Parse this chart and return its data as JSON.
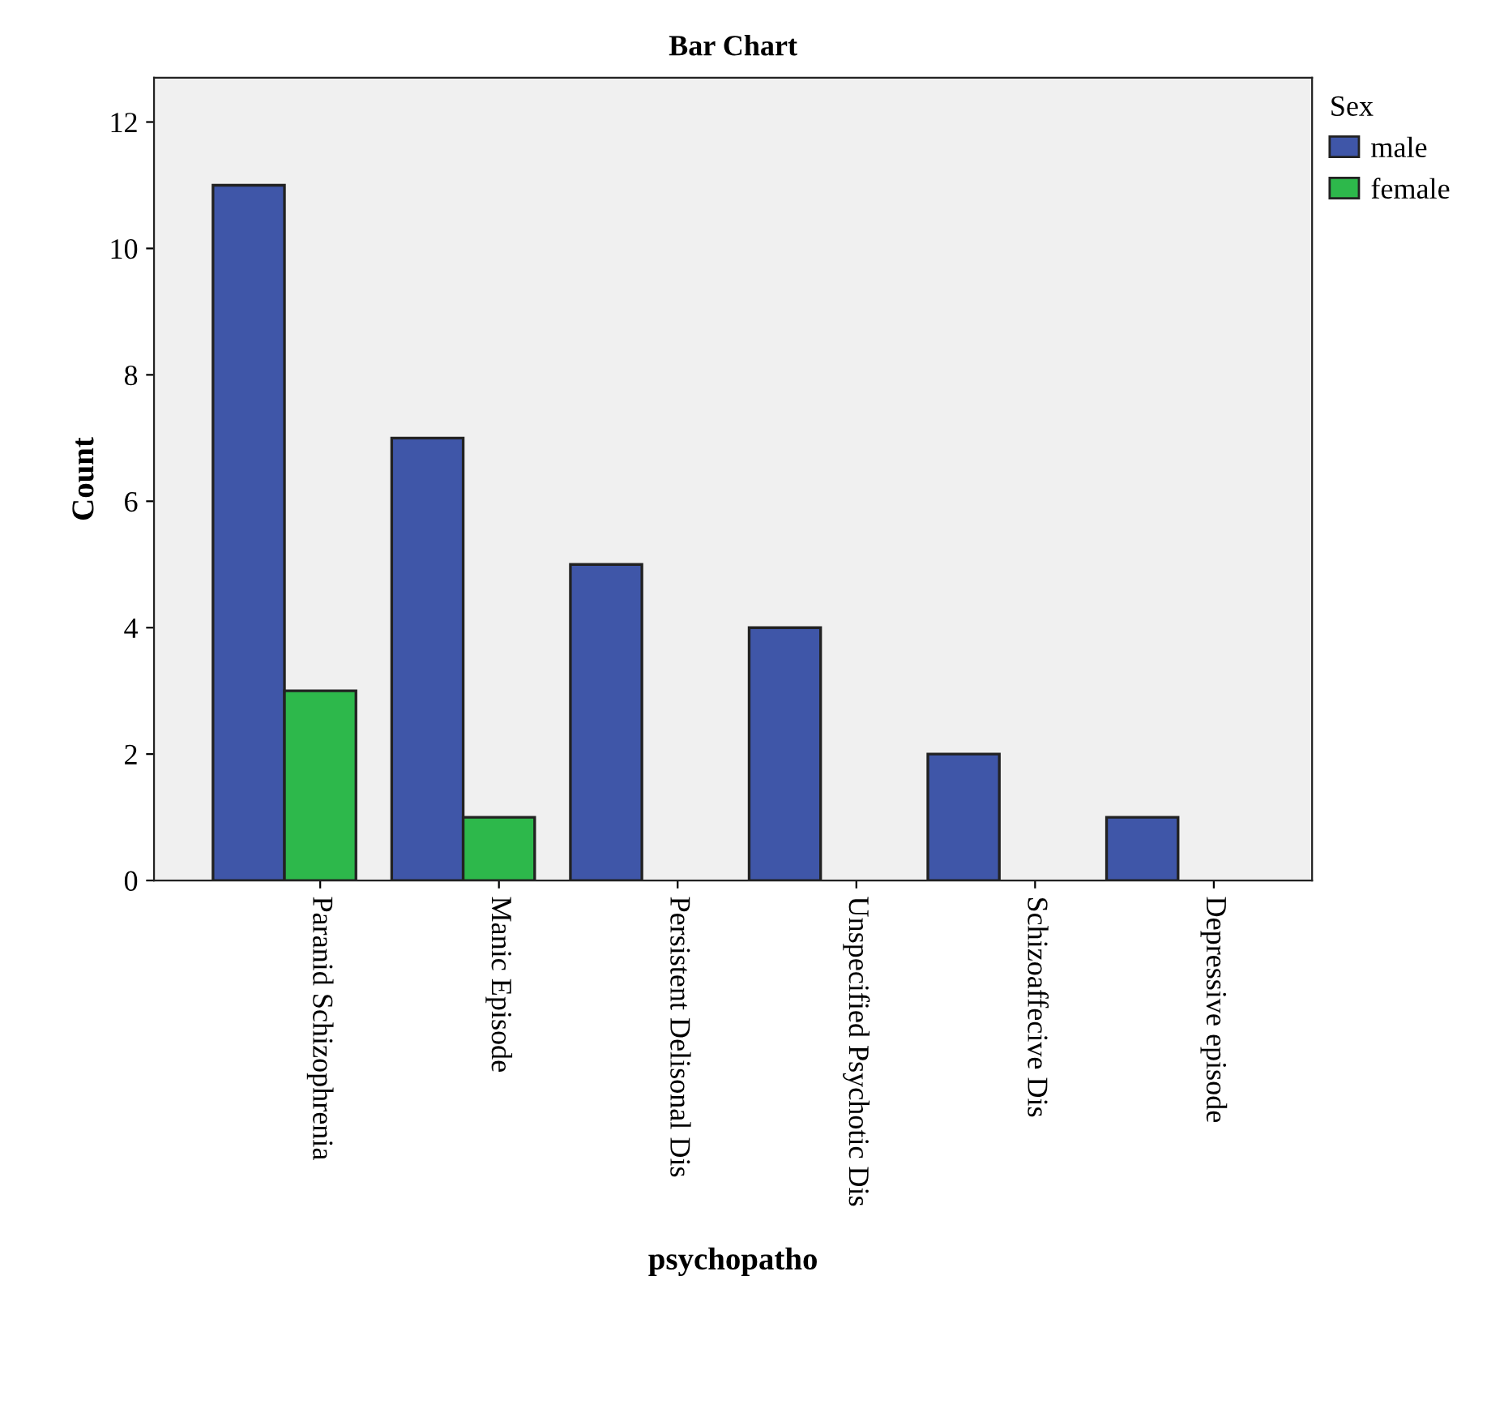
{
  "chart_data": {
    "type": "bar",
    "title": "Bar Chart",
    "xlabel": "psychopatho",
    "ylabel": "Count",
    "legend_title": "Sex",
    "categories": [
      "Paranid Schizophrenia",
      "Manic Episode",
      "Persistent Delisonal Dis",
      "Unspecified Psychotic Dis",
      "Schizoaffecive Dis",
      "Depressive episode"
    ],
    "series": [
      {
        "name": "male",
        "color": "#3f56a8",
        "values": [
          11,
          7,
          5,
          4,
          2,
          1
        ]
      },
      {
        "name": "female",
        "color": "#2db84b",
        "values": [
          3,
          1,
          null,
          null,
          null,
          null
        ]
      }
    ],
    "ylim": [
      0,
      12.7
    ],
    "yticks": [
      0,
      2,
      4,
      6,
      8,
      10,
      12
    ],
    "grid": false,
    "legend": "top right"
  }
}
